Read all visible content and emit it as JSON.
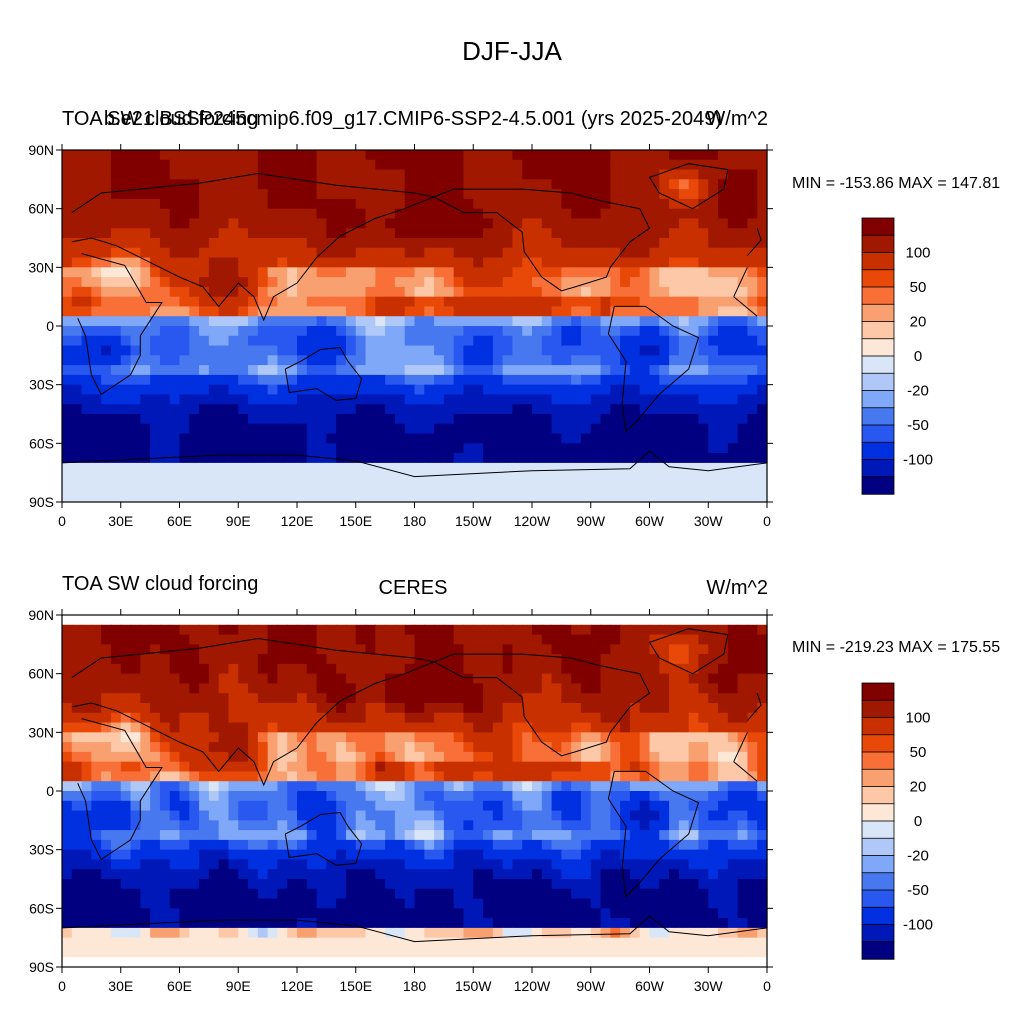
{
  "main_title": "DJF-JJA",
  "colors": [
    "#000080",
    "#0018b8",
    "#0030e0",
    "#2858f0",
    "#4878f0",
    "#80a8f8",
    "#b0c8f8",
    "#d8e6f8",
    "#fde8d8",
    "#fcc8a8",
    "#f8a070",
    "#f87038",
    "#e84808",
    "#c83000",
    "#a01800",
    "#800000"
  ],
  "levels": [
    -120,
    -100,
    -75,
    -50,
    -40,
    -30,
    -20,
    -10,
    0,
    10,
    20,
    30,
    40,
    50,
    75,
    100,
    120
  ],
  "chart_data": [
    {
      "type": "heatmap",
      "left_title": "TOA SW cloud forcing",
      "center_title": "b.e21.BSSP245cmip6.f09_g17.CMIP6-SSP2-4.5.001 (yrs 2025-2049)",
      "units": "W/m^2",
      "stats": "MIN = -153.86 MAX = 147.81",
      "x_ticks": [
        "0",
        "30E",
        "60E",
        "90E",
        "120E",
        "150E",
        "180",
        "150W",
        "120W",
        "90W",
        "60W",
        "30W",
        "0"
      ],
      "y_ticks": [
        "90N",
        "60N",
        "30N",
        "0",
        "30S",
        "60S",
        "90S"
      ],
      "colorbar_labels": [
        "100",
        "50",
        "20",
        "0",
        "-20",
        "-50",
        "-100"
      ],
      "xlim": [
        0,
        360
      ],
      "ylim": [
        -90,
        90
      ]
    },
    {
      "type": "heatmap",
      "left_title": "TOA SW cloud forcing",
      "center_title": "CERES",
      "units": "W/m^2",
      "stats": "MIN = -219.23 MAX = 175.55",
      "x_ticks": [
        "0",
        "30E",
        "60E",
        "90E",
        "120E",
        "150E",
        "180",
        "150W",
        "120W",
        "90W",
        "60W",
        "30W",
        "0"
      ],
      "y_ticks": [
        "90N",
        "60N",
        "30N",
        "0",
        "30S",
        "60S",
        "90S"
      ],
      "colorbar_labels": [
        "100",
        "50",
        "20",
        "0",
        "-20",
        "-50",
        "-100"
      ],
      "xlim": [
        0,
        360
      ],
      "ylim": [
        -90,
        90
      ]
    }
  ]
}
